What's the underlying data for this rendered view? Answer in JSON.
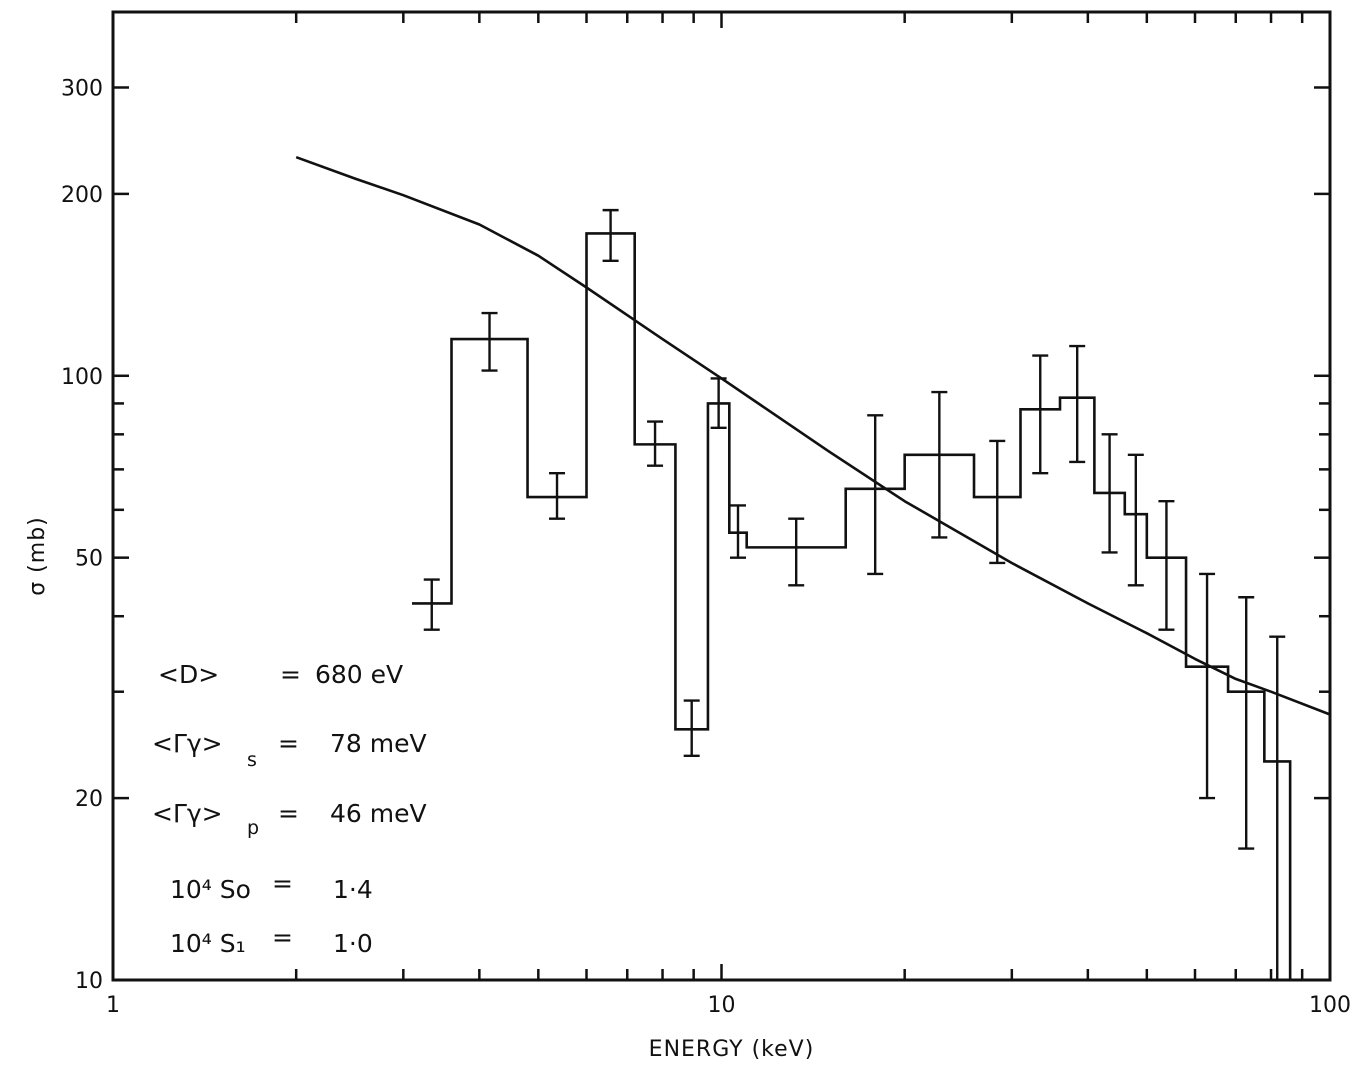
{
  "chart_data": {
    "type": "line",
    "xlabel": "ENERGY  (keV)",
    "ylabel": "σ (mb)",
    "x_scale": "log",
    "y_scale": "log",
    "xlim": [
      1,
      100
    ],
    "ylim": [
      10,
      400
    ],
    "x_ticks": [
      1,
      10,
      100
    ],
    "x_tick_labels": [
      "1",
      "10",
      "100"
    ],
    "y_ticks": [
      10,
      20,
      50,
      100,
      200,
      300
    ],
    "y_tick_labels": [
      "10",
      "20",
      "50",
      "100",
      "200",
      "300"
    ],
    "grid": false,
    "series": [
      {
        "style": "step-histogram-with-error-bars",
        "bins": [
          {
            "x_low": 3.1,
            "x_high": 3.6,
            "y": 42,
            "err_low": 38,
            "err_high": 46
          },
          {
            "x_low": 3.6,
            "x_high": 4.8,
            "y": 115,
            "err_low": 102,
            "err_high": 127
          },
          {
            "x_low": 4.8,
            "x_high": 6.0,
            "y": 63,
            "err_low": 58,
            "err_high": 69
          },
          {
            "x_low": 6.0,
            "x_high": 7.2,
            "y": 172,
            "err_low": 155,
            "err_high": 188
          },
          {
            "x_low": 7.2,
            "x_high": 8.4,
            "y": 77,
            "err_low": 71,
            "err_high": 84
          },
          {
            "x_low": 8.4,
            "x_high": 9.5,
            "y": 26,
            "err_low": 23.5,
            "err_high": 29
          },
          {
            "x_low": 9.5,
            "x_high": 10.3,
            "y": 90,
            "err_low": 82,
            "err_high": 99
          },
          {
            "x_low": 10.3,
            "x_high": 11.0,
            "y": 55,
            "err_low": 50,
            "err_high": 61
          },
          {
            "x_low": 11.0,
            "x_high": 16.0,
            "y": 52,
            "err_low": 45,
            "err_high": 58
          },
          {
            "x_low": 16.0,
            "x_high": 20.0,
            "y": 65,
            "err_low": 47,
            "err_high": 86
          },
          {
            "x_low": 20.0,
            "x_high": 26.0,
            "y": 74,
            "err_low": 54,
            "err_high": 94
          },
          {
            "x_low": 26.0,
            "x_high": 31.0,
            "y": 63,
            "err_low": 49,
            "err_high": 78
          },
          {
            "x_low": 31.0,
            "x_high": 36.0,
            "y": 88,
            "err_low": 69,
            "err_high": 108
          },
          {
            "x_low": 36.0,
            "x_high": 41.0,
            "y": 92,
            "err_low": 72,
            "err_high": 112
          },
          {
            "x_low": 41.0,
            "x_high": 46.0,
            "y": 64,
            "err_low": 51,
            "err_high": 80
          },
          {
            "x_low": 46.0,
            "x_high": 50.0,
            "y": 59,
            "err_low": 45,
            "err_high": 74
          },
          {
            "x_low": 50.0,
            "x_high": 58.0,
            "y": 50,
            "err_low": 38,
            "err_high": 62
          },
          {
            "x_low": 58.0,
            "x_high": 68.0,
            "y": 33,
            "err_low": 20,
            "err_high": 47
          },
          {
            "x_low": 68.0,
            "x_high": 78.0,
            "y": 30,
            "err_low": 16.5,
            "err_high": 43
          },
          {
            "x_low": 78.0,
            "x_high": 86.0,
            "y": 23,
            "err_low": 10,
            "err_high": 37
          },
          {
            "x_low": 86.0,
            "x_high": 91.0,
            "y": 10,
            "err_low": 10,
            "err_high": 10
          }
        ]
      },
      {
        "style": "smooth-curve",
        "x": [
          2.0,
          2.5,
          3.0,
          4.0,
          5.0,
          6.0,
          8.0,
          10.0,
          15.0,
          20.0,
          30.0,
          40.0,
          50.0,
          60.0,
          70.0,
          80.0,
          100.0
        ],
        "y": [
          230,
          212,
          199,
          178,
          158,
          140,
          115,
          99,
          75,
          62,
          49,
          42,
          37.5,
          34,
          31.5,
          30,
          27.5
        ]
      }
    ],
    "annotations": [
      {
        "lhs": "<D>",
        "sub": "",
        "eq": "=",
        "value": "680 eV"
      },
      {
        "lhs": "<Γγ>",
        "sub": "s",
        "eq": "=",
        "value": "78 meV"
      },
      {
        "lhs": "<Γγ>",
        "sub": "p",
        "eq": "=",
        "value": "46 meV"
      },
      {
        "lhs": "10⁴ So",
        "sub": "",
        "eq": "=",
        "value": "1·4"
      },
      {
        "lhs": "10⁴ S₁",
        "sub": "",
        "eq": "=",
        "value": "1·0"
      }
    ]
  }
}
